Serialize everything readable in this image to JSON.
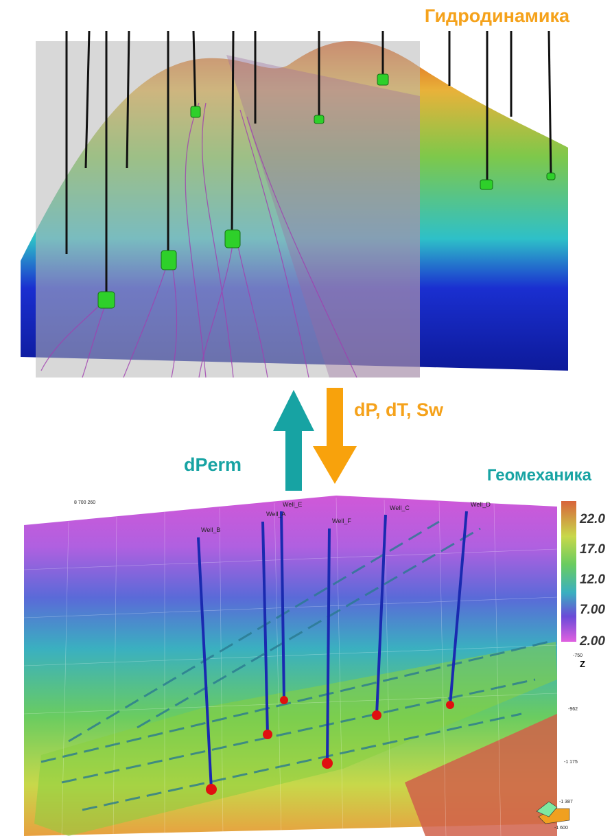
{
  "hydrodynamics": {
    "title": "Гидродинамика"
  },
  "arrows": {
    "down_label": "dP, dT, Sw",
    "up_label": "dPerm"
  },
  "geomechanics": {
    "title": "Геомеханика",
    "coordinate_label": "8 700 260",
    "wells": [
      "Well_B",
      "Well_A",
      "Well_E",
      "Well_F",
      "Well_C",
      "Well_D"
    ],
    "colorbar_labels": [
      "22.0",
      "17.0",
      "12.0",
      "7.00",
      "2.00"
    ],
    "z_axis": {
      "label": "Z",
      "ticks": [
        "-750",
        "-962",
        "-1 175",
        "-1 387",
        "-1 600"
      ]
    }
  }
}
